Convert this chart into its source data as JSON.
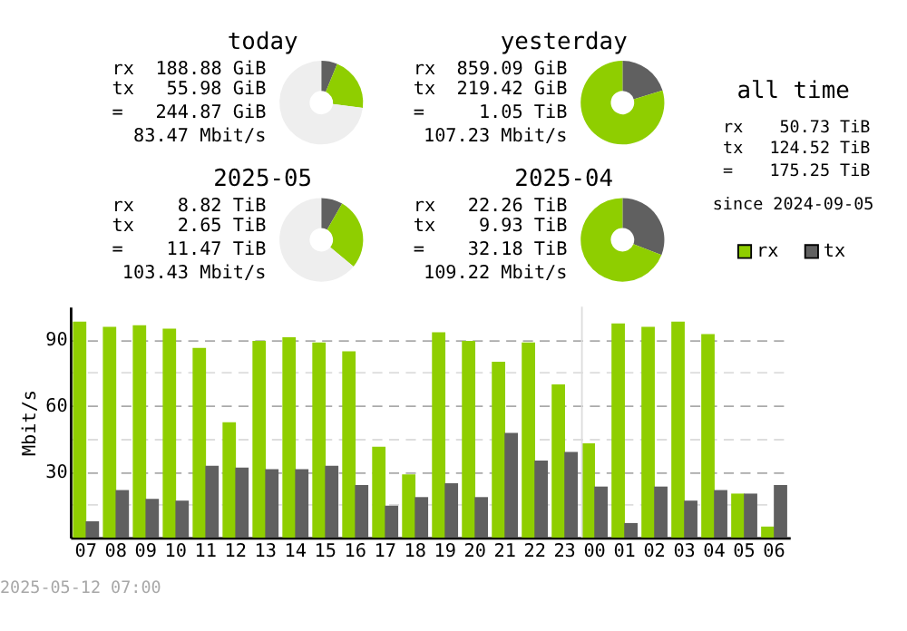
{
  "chart_data": [
    {
      "type": "donut",
      "title": "today",
      "categories": [
        null,
        null,
        null
      ],
      "values": [
        6.2,
        20.8,
        73
      ],
      "colors": [
        "#606060",
        "#8fce00",
        "#eeeeee"
      ],
      "annotations": [
        "rx 188.88 GiB",
        "tx 55.98 GiB",
        "= 244.87 GiB",
        "83.47 Mbit/s"
      ]
    },
    {
      "type": "donut",
      "title": "yesterday",
      "categories": [
        null,
        null
      ],
      "values": [
        20.3,
        79.7
      ],
      "colors": [
        "#606060",
        "#8fce00"
      ],
      "annotations": [
        "rx 859.09 GiB",
        "tx 219.42 GiB",
        "= 1.05 TiB",
        "107.23 Mbit/s"
      ]
    },
    {
      "type": "other",
      "title": "all time",
      "annotations": [
        "rx 50.73 TiB",
        "tx 124.52 TiB",
        "= 175.25 TiB",
        "since 2024-09-05"
      ]
    },
    {
      "type": "donut",
      "title": "2025-05",
      "categories": [
        null,
        null,
        null
      ],
      "values": [
        8.3,
        27.7,
        64
      ],
      "colors": [
        "#606060",
        "#8fce00",
        "#eeeeee"
      ],
      "annotations": [
        "rx 8.82 TiB",
        "tx 2.65 TiB",
        "= 11.47 TiB",
        "103.43 Mbit/s"
      ]
    },
    {
      "type": "donut",
      "title": "2025-04",
      "categories": [
        null,
        null
      ],
      "values": [
        30.9,
        69.1
      ],
      "colors": [
        "#606060",
        "#8fce00"
      ],
      "annotations": [
        "rx 22.26 TiB",
        "tx 9.93 TiB",
        "= 32.18 TiB",
        "109.22 Mbit/s"
      ]
    },
    {
      "type": "bar",
      "ylabel": "Mbit/s",
      "categories": [
        "07",
        "08",
        "09",
        "10",
        "11",
        "12",
        "13",
        "14",
        "15",
        "16",
        "17",
        "18",
        "19",
        "20",
        "21",
        "22",
        "23",
        "00",
        "01",
        "02",
        "03",
        "04",
        "05",
        "06"
      ],
      "series": [
        {
          "name": "rx",
          "color": "#8fce00",
          "values": [
            98.2,
            95.8,
            96.6,
            95.0,
            86.3,
            52.4,
            89.5,
            91.1,
            88.7,
            84.7,
            41.3,
            28.7,
            93.4,
            89.5,
            80.0,
            88.7,
            69.7,
            42.9,
            97.4,
            95.8,
            98.2,
            92.6,
            20.0,
            5.0
          ]
        },
        {
          "name": "tx",
          "color": "#606060",
          "values": [
            7.4,
            21.6,
            17.6,
            16.8,
            32.6,
            31.8,
            31.1,
            31.1,
            32.6,
            23.9,
            14.5,
            18.4,
            24.7,
            18.4,
            47.6,
            35.0,
            38.9,
            23.2,
            6.6,
            23.2,
            16.8,
            21.6,
            20.0,
            23.9
          ]
        }
      ],
      "ylim": [
        0,
        105
      ],
      "yticks": [
        {
          "value": 15,
          "label": null
        },
        30,
        {
          "value": 45,
          "label": null
        },
        60,
        {
          "value": 75,
          "label": null
        },
        90
      ],
      "grid": "y",
      "legend": "top right",
      "ref_lines": [
        {
          "axis": "x",
          "value": "00",
          "color": "#dddddd"
        }
      ],
      "annotations": [
        "2025-05-12 07:00"
      ]
    }
  ]
}
